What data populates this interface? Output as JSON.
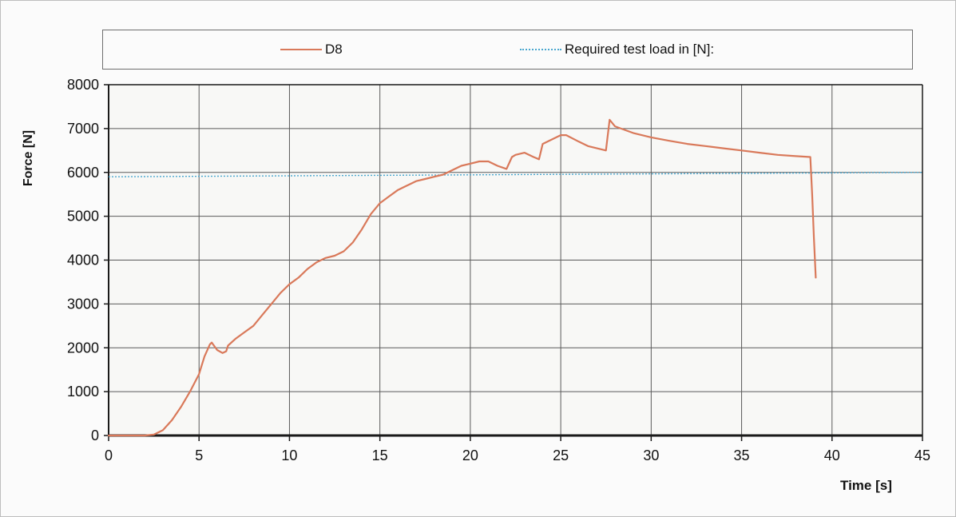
{
  "legend": {
    "series_label": "D8",
    "reference_label": "Required test load in [N]:"
  },
  "axes": {
    "ylabel": "Force [N]",
    "xlabel": "Time [s]"
  },
  "colors": {
    "series": "#d9795a",
    "reference": "#4aa7cf",
    "grid": "#5a5a5a",
    "axis": "#1a1a1a"
  },
  "chart_data": {
    "type": "line",
    "xlabel": "Time [s]",
    "ylabel": "Force [N]",
    "xlim": [
      0,
      45
    ],
    "ylim": [
      0,
      8000
    ],
    "xticks": [
      0,
      5,
      10,
      15,
      20,
      25,
      30,
      35,
      40,
      45
    ],
    "yticks": [
      0,
      1000,
      2000,
      3000,
      4000,
      5000,
      6000,
      7000,
      8000
    ],
    "grid": true,
    "legend_position": "top",
    "series": [
      {
        "name": "D8",
        "x": [
          0,
          1.0,
          2.0,
          2.5,
          3.0,
          3.5,
          4.0,
          4.5,
          5.0,
          5.3,
          5.6,
          5.7,
          6.0,
          6.3,
          6.5,
          6.6,
          7.0,
          7.5,
          8.0,
          8.5,
          9.0,
          9.5,
          10.0,
          10.5,
          11.0,
          11.5,
          12.0,
          12.5,
          13.0,
          13.5,
          14.0,
          14.5,
          15.0,
          15.5,
          16.0,
          16.5,
          17.0,
          17.5,
          18.0,
          18.5,
          19.0,
          19.5,
          20.0,
          20.5,
          21.0,
          21.5,
          22.0,
          22.3,
          22.5,
          23.0,
          23.5,
          23.8,
          24.0,
          24.5,
          25.0,
          25.3,
          26.0,
          26.5,
          27.0,
          27.5,
          27.7,
          28.0,
          29.0,
          30.0,
          31.0,
          32.0,
          33.0,
          34.0,
          35.0,
          36.0,
          37.0,
          38.0,
          38.8,
          38.9,
          39.0,
          39.1
        ],
        "values": [
          0,
          0,
          0,
          20,
          120,
          350,
          650,
          1000,
          1400,
          1800,
          2080,
          2120,
          1950,
          1880,
          1920,
          2050,
          2200,
          2350,
          2500,
          2750,
          3000,
          3250,
          3450,
          3600,
          3800,
          3950,
          4050,
          4100,
          4200,
          4400,
          4700,
          5050,
          5300,
          5450,
          5600,
          5700,
          5800,
          5850,
          5900,
          5950,
          6050,
          6150,
          6200,
          6250,
          6250,
          6150,
          6080,
          6350,
          6400,
          6450,
          6350,
          6300,
          6650,
          6750,
          6850,
          6850,
          6700,
          6600,
          6550,
          6500,
          7200,
          7050,
          6900,
          6800,
          6720,
          6650,
          6600,
          6550,
          6500,
          6450,
          6400,
          6370,
          6350,
          5500,
          4500,
          3600
        ]
      },
      {
        "name": "Required test load in [N]:",
        "x": [
          0,
          45
        ],
        "values": [
          5900,
          6000
        ]
      }
    ]
  }
}
